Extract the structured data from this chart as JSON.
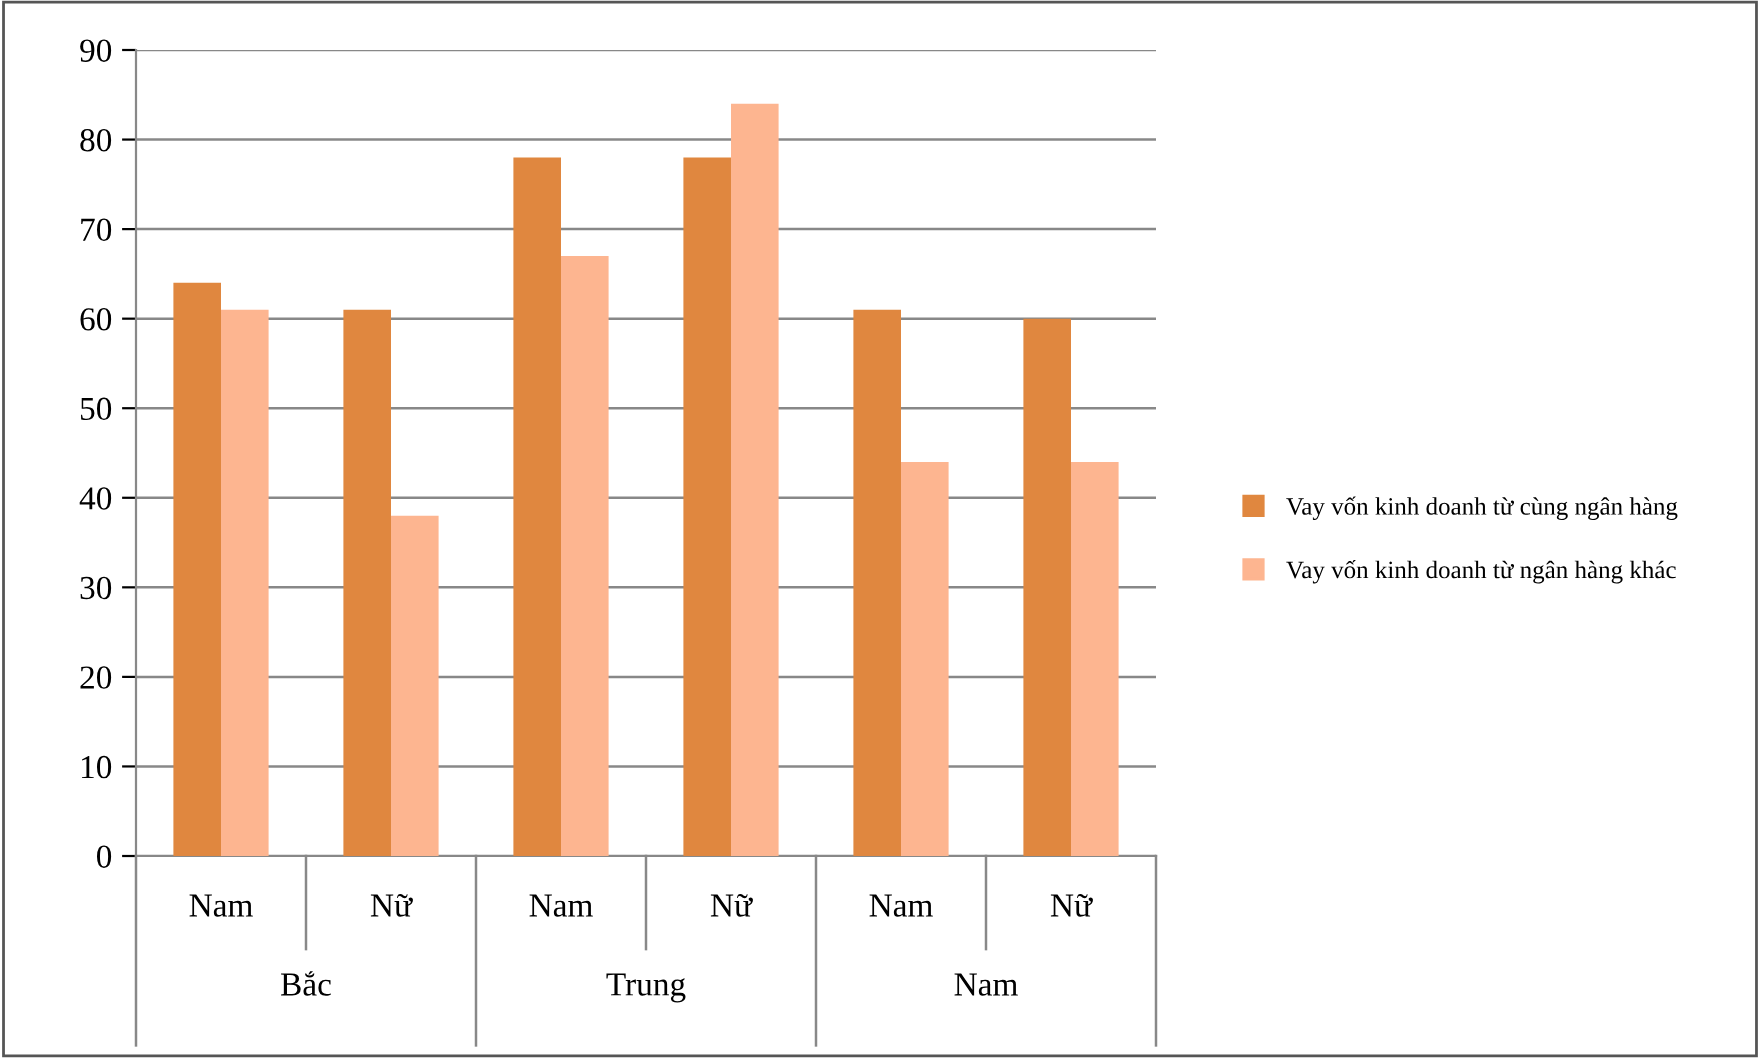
{
  "chart_data": {
    "type": "bar",
    "categories": [
      "Nam",
      "Nữ",
      "Nam",
      "Nữ",
      "Nam",
      "Nữ"
    ],
    "series": [
      {
        "name": "Vay vốn kinh doanh từ cùng ngân hàng",
        "color": "#e0873f",
        "values": [
          64,
          61,
          78,
          78,
          61,
          60
        ]
      },
      {
        "name": "Vay vốn kinh doanh từ ngân hàng khác",
        "color": "#fdb590",
        "values": [
          61,
          38,
          67,
          84,
          44,
          44
        ]
      }
    ],
    "annotations": [
      "Bắc",
      "Trung",
      "Nam"
    ],
    "ylim": [
      0,
      90
    ],
    "yticks": [
      0,
      10,
      20,
      30,
      40,
      50,
      60,
      70,
      80,
      90
    ],
    "grid": "y",
    "legend": "right"
  }
}
